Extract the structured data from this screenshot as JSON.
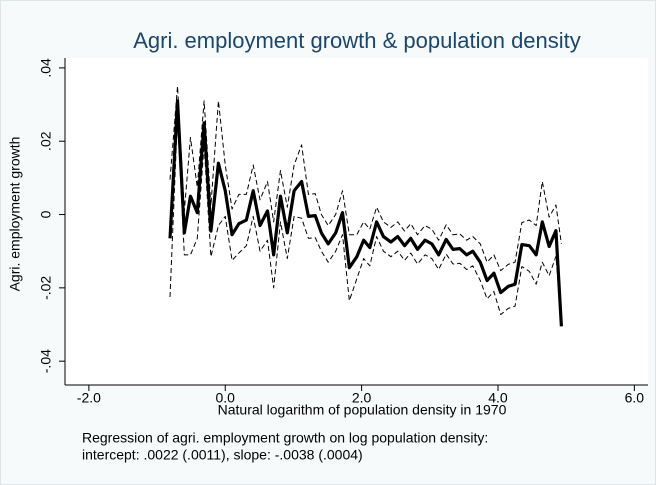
{
  "chart_data": {
    "type": "line",
    "title": "Agri. employment growth & population density",
    "xlabel": "Natural logarithm of population density in 1970",
    "ylabel": "Agri. employment growth",
    "note": [
      "Regression of agri. employment growth on log population density:",
      "intercept: .0022 (.0011), slope: -.0038 (.0004)"
    ],
    "x": [
      -0.81,
      -0.7,
      -0.6,
      -0.51,
      -0.41,
      -0.31,
      -0.21,
      -0.1,
      0,
      0.1,
      0.2,
      0.31,
      0.41,
      0.51,
      0.62,
      0.71,
      0.81,
      0.91,
      1.01,
      1.12,
      1.22,
      1.32,
      1.41,
      1.51,
      1.62,
      1.72,
      1.82,
      1.93,
      2.03,
      2.12,
      2.22,
      2.32,
      2.43,
      2.53,
      2.63,
      2.72,
      2.82,
      2.93,
      3.03,
      3.13,
      3.24,
      3.34,
      3.44,
      3.54,
      3.63,
      3.74,
      3.84,
      3.94,
      4.04,
      4.15,
      4.25,
      4.35,
      4.46,
      4.56,
      4.65,
      4.75,
      4.85,
      4.93
    ],
    "series": [
      {
        "color": "#000000",
        "style": "solid",
        "width": 3.2,
        "values": [
          -0.0065,
          0.031,
          -0.005,
          0.005,
          0.0005,
          0.025,
          -0.0045,
          0.014,
          0.0065,
          -0.0055,
          -0.0025,
          -0.0015,
          0.0065,
          -0.003,
          0.001,
          -0.011,
          0.005,
          -0.005,
          0.0065,
          0.009,
          -0.0005,
          -0.0003,
          -0.005,
          -0.008,
          -0.005,
          0.0005,
          -0.0145,
          -0.0115,
          -0.007,
          -0.009,
          -0.002,
          -0.006,
          -0.0075,
          -0.006,
          -0.0085,
          -0.0065,
          -0.0095,
          -0.007,
          -0.008,
          -0.011,
          -0.0068,
          -0.0095,
          -0.0093,
          -0.011,
          -0.01,
          -0.013,
          -0.018,
          -0.016,
          -0.0213,
          -0.0196,
          -0.019,
          -0.0082,
          -0.0085,
          -0.011,
          -0.002,
          -0.0087,
          -0.0044,
          -0.0305
        ]
      },
      {
        "color": "#000000",
        "style": "dashed",
        "width": 1,
        "values": [
          0.0095,
          0.035,
          0.001,
          0.021,
          0.0075,
          0.031,
          0.0025,
          0.031,
          0.0135,
          0.0015,
          0.0055,
          0.0055,
          0.0135,
          0.004,
          0.009,
          -0.002,
          0.012,
          0.002,
          0.0135,
          0.019,
          0.0055,
          0.0057,
          0,
          -0.003,
          0,
          0.0065,
          -0.0055,
          -0.0055,
          -0.002,
          -0.004,
          0.002,
          -0.002,
          -0.0035,
          -0.002,
          -0.0045,
          -0.0025,
          -0.0055,
          -0.003,
          -0.004,
          -0.007,
          -0.0028,
          -0.0055,
          -0.0053,
          -0.007,
          -0.006,
          -0.008,
          -0.013,
          -0.011,
          -0.0153,
          -0.0136,
          -0.013,
          -0.0022,
          -0.0015,
          -0.003,
          0.009,
          -0.0007,
          0.0026,
          -0.008
        ]
      },
      {
        "color": "#000000",
        "style": "dashed",
        "width": 1,
        "values": [
          -0.0225,
          0.027,
          -0.011,
          -0.011,
          -0.0065,
          0.019,
          -0.0115,
          -0.003,
          -0.0005,
          -0.0125,
          -0.0105,
          -0.0085,
          -0.0005,
          -0.01,
          -0.007,
          -0.02,
          -0.002,
          -0.012,
          -0.0005,
          -0.001,
          -0.0065,
          -0.0063,
          -0.01,
          -0.013,
          -0.01,
          -0.0055,
          -0.0235,
          -0.0175,
          -0.012,
          -0.014,
          -0.006,
          -0.01,
          -0.0115,
          -0.01,
          -0.0125,
          -0.0105,
          -0.0135,
          -0.011,
          -0.012,
          -0.015,
          -0.0108,
          -0.0135,
          -0.0133,
          -0.015,
          -0.014,
          -0.018,
          -0.023,
          -0.021,
          -0.0273,
          -0.0256,
          -0.025,
          -0.0142,
          -0.0155,
          -0.019,
          -0.013,
          -0.0167,
          -0.0114,
          -0.03
        ]
      }
    ],
    "xlim": [
      -2.35,
      6.2
    ],
    "xticks": [
      {
        "value": -2,
        "label": "-2.0"
      },
      {
        "value": 0,
        "label": "0.0"
      },
      {
        "value": 2,
        "label": "2.0"
      },
      {
        "value": 4,
        "label": "4.0"
      },
      {
        "value": 6,
        "label": "6.0"
      }
    ],
    "ylim": [
      -0.0465,
      0.0427
    ],
    "yticks": [
      {
        "value": -0.04,
        "label": "-.04"
      },
      {
        "value": -0.02,
        "label": "-.02"
      },
      0,
      {
        "value": 0.02,
        "label": ".02"
      },
      {
        "value": 0.04,
        "label": ".04"
      }
    ],
    "grid": false
  }
}
